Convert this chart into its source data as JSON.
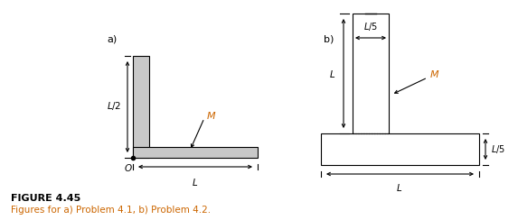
{
  "fig_width": 5.73,
  "fig_height": 2.44,
  "dpi": 100,
  "background": "#ffffff",
  "shape_color": "#c8c8c8",
  "shape_edge": "#000000",
  "text_color_label": "#000000",
  "text_color_M": "#cc6600",
  "figure_title": "FIGURE 4.45",
  "figure_caption": "Figures for a) Problem 4.1, b) Problem 4.2.",
  "label_a": "a)",
  "label_b": "b)"
}
